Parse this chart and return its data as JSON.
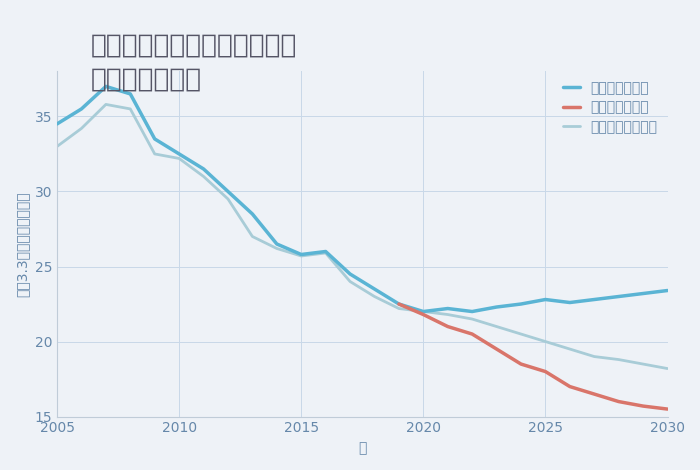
{
  "title": "兵庫県たつの市龍野町中井の\n土地の価格推移",
  "xlabel": "年",
  "ylabel": "坪（3.3㎡）単価（万円）",
  "background_color": "#eef2f7",
  "plot_background": "#eef2f7",
  "ylim": [
    15,
    38
  ],
  "xlim": [
    2005,
    2030
  ],
  "yticks": [
    15,
    20,
    25,
    30,
    35
  ],
  "xticks": [
    2005,
    2010,
    2015,
    2020,
    2025,
    2030
  ],
  "good_scenario": {
    "label": "グッドシナリオ",
    "color": "#5ab4d4",
    "linewidth": 2.5,
    "x": [
      2005,
      2006,
      2007,
      2008,
      2009,
      2010,
      2011,
      2012,
      2013,
      2014,
      2015,
      2016,
      2017,
      2018,
      2019,
      2020,
      2021,
      2022,
      2023,
      2024,
      2025,
      2026,
      2027,
      2028,
      2029,
      2030
    ],
    "y": [
      34.5,
      35.5,
      37.0,
      36.5,
      33.5,
      32.5,
      31.5,
      30.0,
      28.5,
      26.5,
      25.8,
      26.0,
      24.5,
      23.5,
      22.5,
      22.0,
      22.2,
      22.0,
      22.3,
      22.5,
      22.8,
      22.6,
      22.8,
      23.0,
      23.2,
      23.4
    ]
  },
  "bad_scenario": {
    "label": "バッドシナリオ",
    "color": "#d9756a",
    "linewidth": 2.5,
    "x": [
      2019,
      2020,
      2021,
      2022,
      2023,
      2024,
      2025,
      2026,
      2027,
      2028,
      2029,
      2030
    ],
    "y": [
      22.5,
      21.8,
      21.0,
      20.5,
      19.5,
      18.5,
      18.0,
      17.0,
      16.5,
      16.0,
      15.7,
      15.5
    ]
  },
  "normal_scenario": {
    "label": "ノーマルシナリオ",
    "color": "#a8ccd7",
    "linewidth": 2.0,
    "x": [
      2005,
      2006,
      2007,
      2008,
      2009,
      2010,
      2011,
      2012,
      2013,
      2014,
      2015,
      2016,
      2017,
      2018,
      2019,
      2020,
      2021,
      2022,
      2023,
      2024,
      2025,
      2026,
      2027,
      2028,
      2029,
      2030
    ],
    "y": [
      33.0,
      34.2,
      35.8,
      35.5,
      32.5,
      32.2,
      31.0,
      29.5,
      27.0,
      26.2,
      25.7,
      25.9,
      24.0,
      23.0,
      22.2,
      22.0,
      21.8,
      21.5,
      21.0,
      20.5,
      20.0,
      19.5,
      19.0,
      18.8,
      18.5,
      18.2
    ]
  },
  "legend_fontsize": 10,
  "title_fontsize": 19,
  "axis_label_fontsize": 10,
  "tick_fontsize": 10,
  "title_color": "#555566",
  "tick_color": "#6688aa",
  "axis_color": "#6688aa"
}
